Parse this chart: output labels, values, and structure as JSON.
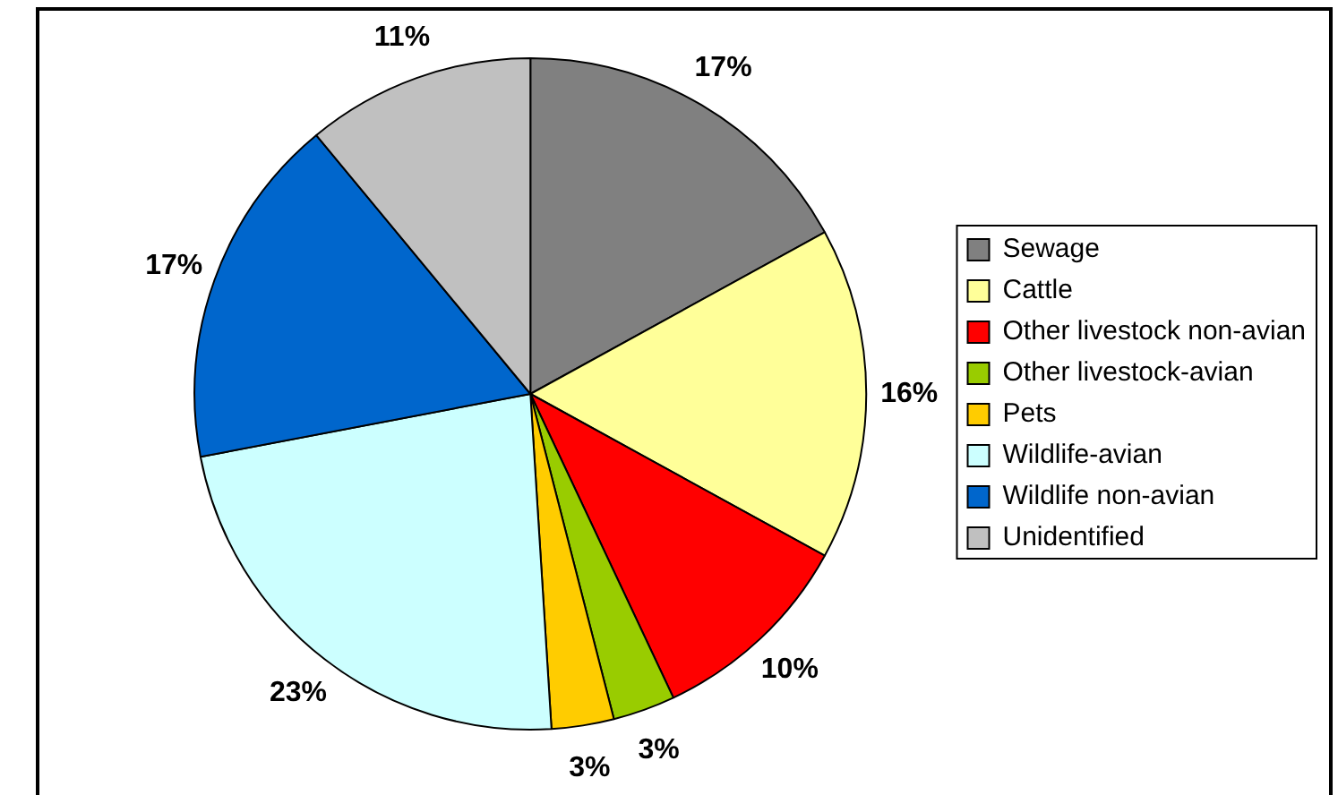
{
  "chart_data": {
    "type": "pie",
    "categories": [
      "Sewage",
      "Cattle",
      "Other livestock non-avian",
      "Other livestock-avian",
      "Pets",
      "Wildlife-avian",
      "Wildlife non-avian",
      "Unidentified"
    ],
    "values": [
      17,
      16,
      10,
      3,
      3,
      23,
      17,
      11
    ],
    "colors": [
      "#808080",
      "#ffff99",
      "#ff0000",
      "#99cc00",
      "#ffcc00",
      "#ccffff",
      "#0066cc",
      "#c0c0c0"
    ],
    "value_labels": [
      "17%",
      "16%",
      "10%",
      "3%",
      "3%",
      "23%",
      "17%",
      "11%"
    ],
    "legend": "right"
  }
}
